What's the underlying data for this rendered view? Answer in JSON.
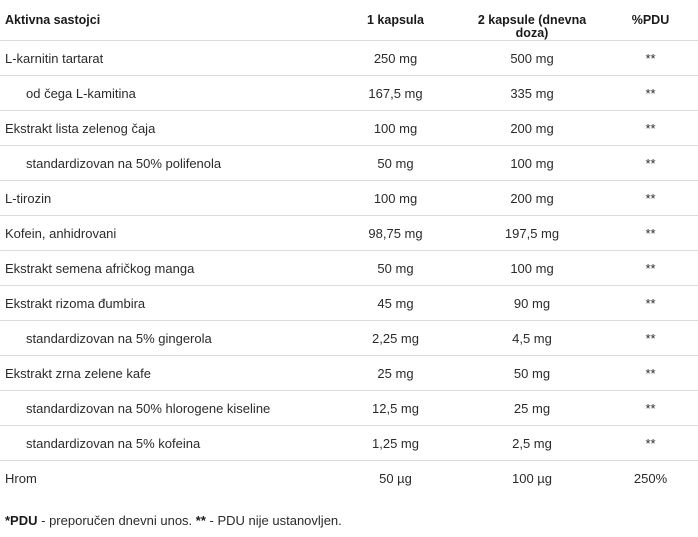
{
  "headers": {
    "ingredients": "Aktivna sastojci",
    "one_capsule": "1 kapsula",
    "two_capsules": "2 kapsule (dnevna doza)",
    "pdu": "%PDU"
  },
  "rows": [
    {
      "name": "L-karnitin tartarat",
      "one": "250 mg",
      "two": "500 mg",
      "pdu": "**",
      "sub": false
    },
    {
      "name": "od čega L-kamitina",
      "one": "167,5 mg",
      "two": "335 mg",
      "pdu": "**",
      "sub": true
    },
    {
      "name": "Ekstrakt lista zelenog čaja",
      "one": "100 mg",
      "two": "200 mg",
      "pdu": "**",
      "sub": false
    },
    {
      "name": "standardizovan na 50% polifenola",
      "one": "50 mg",
      "two": "100 mg",
      "pdu": "**",
      "sub": true
    },
    {
      "name": "L-tirozin",
      "one": "100 mg",
      "two": "200 mg",
      "pdu": "**",
      "sub": false
    },
    {
      "name": "Kofein, anhidrovani",
      "one": "98,75 mg",
      "two": "197,5 mg",
      "pdu": "**",
      "sub": false
    },
    {
      "name": "Ekstrakt semena afričkog manga",
      "one": "50 mg",
      "two": "100 mg",
      "pdu": "**",
      "sub": false
    },
    {
      "name": "Ekstrakt rizoma đumbira",
      "one": "45 mg",
      "two": "90 mg",
      "pdu": "**",
      "sub": false
    },
    {
      "name": "standardizovan na 5% gingerola",
      "one": "2,25 mg",
      "two": "4,5 mg",
      "pdu": "**",
      "sub": true
    },
    {
      "name": "Ekstrakt zrna zelene kafe",
      "one": "25 mg",
      "two": "50 mg",
      "pdu": "**",
      "sub": false
    },
    {
      "name": "standardizovan na 50% hlorogene kiseline",
      "one": "12,5 mg",
      "two": "25 mg",
      "pdu": "**",
      "sub": true
    },
    {
      "name": "standardizovan na 5% kofeina",
      "one": "1,25 mg",
      "two": "2,5 mg",
      "pdu": "**",
      "sub": true
    },
    {
      "name": "Hrom",
      "one": "50 µg",
      "two": "100 µg",
      "pdu": "250%",
      "sub": false
    }
  ],
  "footnote": {
    "term1": "*PDU",
    "def1": " - preporučen dnevni unos. ",
    "term2": "**",
    "def2": " - PDU nije ustanovljen."
  },
  "colors": {
    "border": "#dcdcdc",
    "text": "#2b2b2b"
  }
}
